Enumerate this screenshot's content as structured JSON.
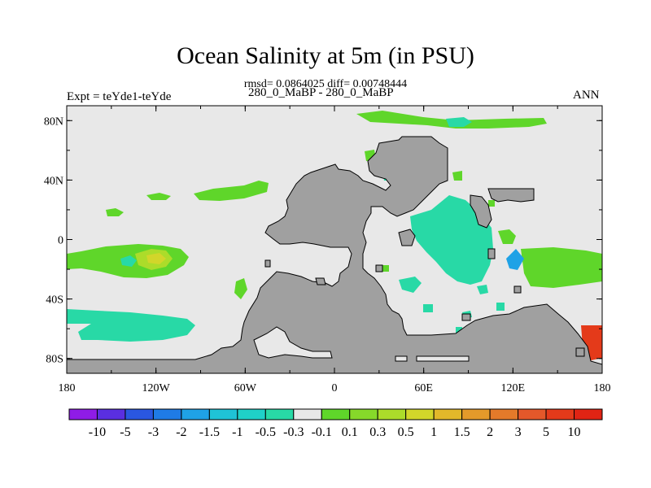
{
  "title": "Ocean Salinity at 5m (in PSU)",
  "subtitle": "rmsd= 0.0864025 diff= 0.00748444",
  "left_label": "Expt = teYde1-teYde",
  "center_label": "280_0_MaBP - 280_0_MaBP",
  "right_label": "ANN",
  "map": {
    "projection": "cylindrical-equidistant",
    "lon_range": [
      -180,
      180
    ],
    "lat_range": [
      -90,
      90
    ],
    "lat_ticks": [
      {
        "value": 80,
        "label": "80N"
      },
      {
        "value": 40,
        "label": "40N"
      },
      {
        "value": 0,
        "label": "0"
      },
      {
        "value": -40,
        "label": "40S"
      },
      {
        "value": -80,
        "label": "80S"
      }
    ],
    "lon_ticks": [
      {
        "value": -180,
        "label": "180"
      },
      {
        "value": -120,
        "label": "120W"
      },
      {
        "value": -60,
        "label": "60W"
      },
      {
        "value": 0,
        "label": "0"
      },
      {
        "value": 60,
        "label": "60E"
      },
      {
        "value": 120,
        "label": "120E"
      },
      {
        "value": 180,
        "label": "180"
      }
    ],
    "colors": {
      "ocean_background": "#e8e8e8",
      "land": "#a0a0a0"
    }
  },
  "colorbar": {
    "levels": [
      "-10",
      "-5",
      "-3",
      "-2",
      "-1.5",
      "-1",
      "-0.5",
      "-0.3",
      "-0.1",
      "0.1",
      "0.3",
      "0.5",
      "1",
      "1.5",
      "2",
      "3",
      "5",
      "10"
    ],
    "colors": [
      "#8f1ce6",
      "#5a2fe0",
      "#2a57e0",
      "#1f7be6",
      "#1fa2e6",
      "#1fc3d6",
      "#1fd1c8",
      "#28d9a6",
      "#e8e8e8",
      "#5fd62a",
      "#86d92a",
      "#acdc2a",
      "#d2d62a",
      "#e2b82a",
      "#e49a2a",
      "#e47a2a",
      "#e4582a",
      "#e43a1a",
      "#e02414"
    ]
  }
}
